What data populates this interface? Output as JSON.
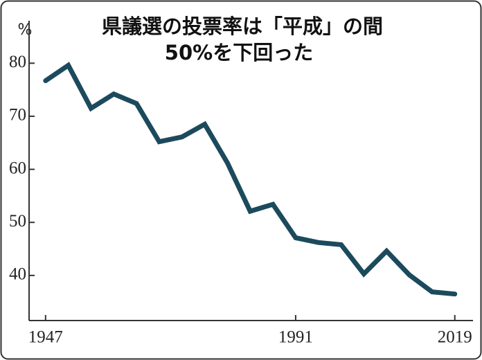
{
  "chart_data": {
    "type": "line",
    "title": [
      "県議選の投票率は「平成」の間",
      "50%を下回った"
    ],
    "ylabel": "%",
    "x": [
      1947,
      1951,
      1955,
      1959,
      1963,
      1967,
      1971,
      1975,
      1979,
      1983,
      1987,
      1991,
      1995,
      1999,
      2003,
      2007,
      2011,
      2015,
      2019
    ],
    "series": [
      {
        "color": "#1c4a5d",
        "values": [
          76.7,
          79.6,
          71.5,
          74.2,
          72.4,
          65.2,
          66.1,
          68.5,
          61.2,
          52.1,
          53.4,
          47.1,
          46.2,
          45.8,
          40.3,
          44.6,
          40.1,
          36.9,
          36.5
        ]
      }
    ],
    "xlim": [
      1944.1,
      2022.2
    ],
    "xticks": [
      1947,
      1991,
      2019
    ],
    "ylim": [
      31.5,
      88
    ],
    "yticks": [
      40,
      50,
      60,
      70,
      80
    ]
  }
}
